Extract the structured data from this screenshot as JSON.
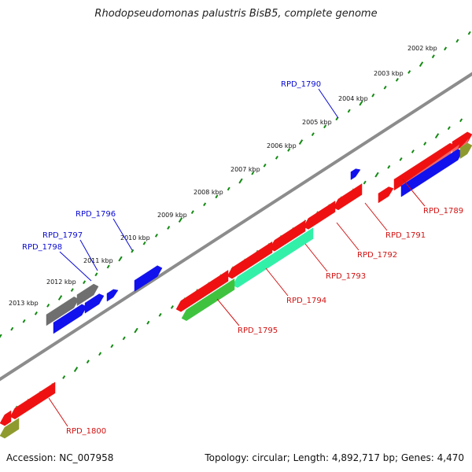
{
  "title": "Rhodopseudomonas palustris BisB5, complete genome",
  "footer": {
    "accession": "Accession: NC_007958",
    "summary": "Topology: circular; Length: 4,892,717 bp; Genes: 4,470"
  },
  "colors": {
    "backbone": "#8c8c8c",
    "tick": "#138a13",
    "label_fwd": "#0a0ad2",
    "label_rev": "#d21212",
    "gene_red": "#ef1111",
    "gene_blue": "#1111ee",
    "gene_green": "#3fc33f",
    "gene_teal": "#33f0a9",
    "gene_gray": "#6f6f6f",
    "gene_olive": "#8f9a2e"
  },
  "kbp_labels": [
    "2002 kbp",
    "2003 kbp",
    "2004 kbp",
    "2005 kbp",
    "2006 kbp",
    "2007 kbp",
    "2008 kbp",
    "2009 kbp",
    "2010 kbp",
    "2011 kbp",
    "2012 kbp",
    "2013 kbp"
  ],
  "gene_labels": {
    "forward": [
      "RPD_1790",
      "RPD_1796",
      "RPD_1797",
      "RPD_1798"
    ],
    "reverse": [
      "RPD_1789",
      "RPD_1791",
      "RPD_1792",
      "RPD_1793",
      "RPD_1794",
      "RPD_1795",
      "RPD_1800"
    ]
  }
}
